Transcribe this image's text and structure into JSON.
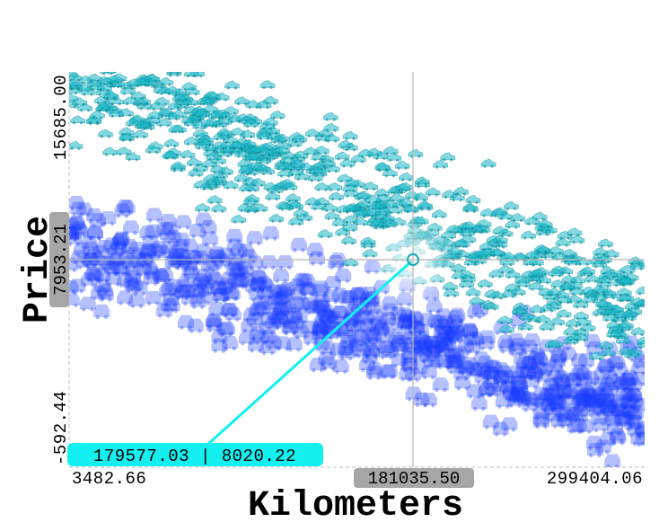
{
  "chart_data": {
    "type": "scatter",
    "title": "",
    "xlabel": "Kilometers",
    "ylabel": "Price",
    "xlim": [
      3482.66,
      299404.06
    ],
    "ylim": [
      -592.44,
      15685.0
    ],
    "x_ticks": [
      "3482.66",
      "299404.06"
    ],
    "y_ticks": [
      "-592.44",
      "15685.00"
    ],
    "grid": false,
    "marker": "car",
    "series": [
      {
        "color": "#1a3cff",
        "trend": {
          "x": [
            3482.66,
            299404.06
          ],
          "y": [
            8600,
            2000
          ]
        },
        "spread": 1450,
        "count": 700
      },
      {
        "color": "#19b8c8",
        "trend": {
          "x": [
            3482.66,
            299404.06
          ],
          "y": [
            15800,
            5700
          ]
        },
        "spread": 1750,
        "count": 700
      }
    ],
    "crosshair": {
      "x_label": "181035.50",
      "y_label": "7953.21"
    },
    "tooltip": {
      "text": "179577.03 | 8020.22",
      "color": "#14f0f0"
    }
  }
}
